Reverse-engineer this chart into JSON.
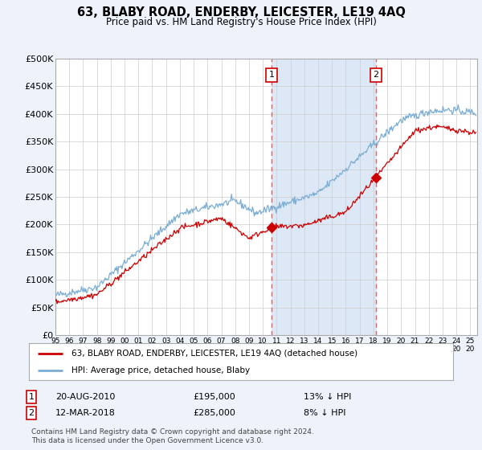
{
  "title": "63, BLABY ROAD, ENDERBY, LEICESTER, LE19 4AQ",
  "subtitle": "Price paid vs. HM Land Registry's House Price Index (HPI)",
  "ylabel_ticks": [
    "£0",
    "£50K",
    "£100K",
    "£150K",
    "£200K",
    "£250K",
    "£300K",
    "£350K",
    "£400K",
    "£450K",
    "£500K"
  ],
  "ytick_vals": [
    0,
    50000,
    100000,
    150000,
    200000,
    250000,
    300000,
    350000,
    400000,
    450000,
    500000
  ],
  "xlim_start": 1995.0,
  "xlim_end": 2025.5,
  "ylim": [
    0,
    500000
  ],
  "sale1_x": 2010.64,
  "sale1_y": 195000,
  "sale2_x": 2018.19,
  "sale2_y": 285000,
  "legend_label_red": "63, BLABY ROAD, ENDERBY, LEICESTER, LE19 4AQ (detached house)",
  "legend_label_blue": "HPI: Average price, detached house, Blaby",
  "annotation1_date": "20-AUG-2010",
  "annotation1_price": "£195,000",
  "annotation1_hpi": "13% ↓ HPI",
  "annotation2_date": "12-MAR-2018",
  "annotation2_price": "£285,000",
  "annotation2_hpi": "8% ↓ HPI",
  "footer": "Contains HM Land Registry data © Crown copyright and database right 2024.\nThis data is licensed under the Open Government Licence v3.0.",
  "background_color": "#eef2fb",
  "plot_bg_color": "#ffffff",
  "grid_color": "#cccccc",
  "red_line_color": "#cc0000",
  "blue_line_color": "#7aadd4",
  "dashed_line_color": "#e06060",
  "span_color": "#dce8f5"
}
